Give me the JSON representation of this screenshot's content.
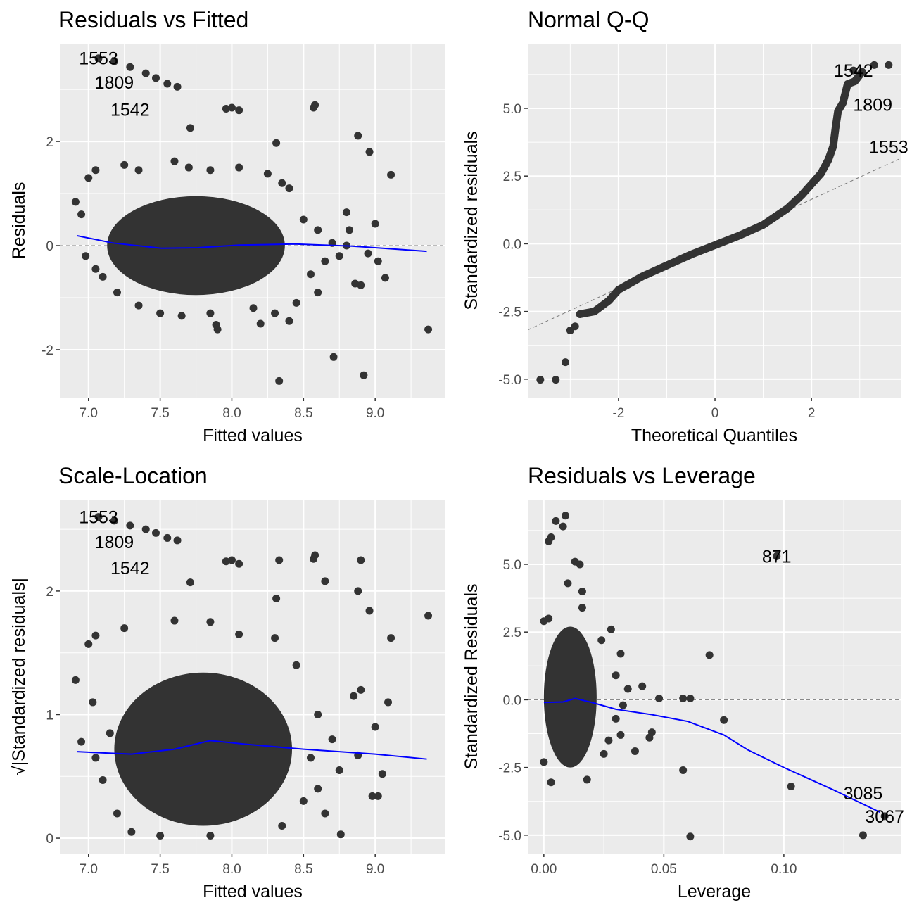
{
  "chart_data": [
    {
      "type": "scatter",
      "title": "Residuals vs Fitted",
      "xlabel": "Fitted values",
      "ylabel": "Residuals",
      "xlim": [
        6.8,
        9.49
      ],
      "ylim": [
        -2.92,
        3.88
      ],
      "xticks": [
        7.0,
        7.5,
        8.0,
        8.5,
        9.0
      ],
      "xtick_labels": [
        "7.0",
        "7.5",
        "8.0",
        "8.5",
        "9.0"
      ],
      "yticks": [
        -2,
        0,
        2
      ],
      "ytick_labels": [
        "-2",
        "0",
        "2"
      ],
      "grid": true,
      "hline": 0,
      "dense_region": {
        "center": [
          7.75,
          0.0
        ],
        "radius": [
          0.62,
          0.95
        ]
      },
      "points": [
        [
          7.07,
          3.6
        ],
        [
          7.18,
          3.54
        ],
        [
          7.29,
          3.43
        ],
        [
          7.4,
          3.31
        ],
        [
          7.47,
          3.22
        ],
        [
          7.55,
          3.11
        ],
        [
          7.62,
          3.05
        ],
        [
          7.96,
          2.63
        ],
        [
          8.0,
          2.65
        ],
        [
          8.05,
          2.6
        ],
        [
          8.58,
          2.7
        ],
        [
          8.57,
          2.65
        ],
        [
          7.71,
          2.26
        ],
        [
          8.31,
          1.97
        ],
        [
          8.88,
          2.11
        ],
        [
          8.96,
          1.8
        ],
        [
          9.11,
          1.36
        ],
        [
          9.37,
          -1.61
        ],
        [
          8.92,
          -2.49
        ],
        [
          8.71,
          -2.14
        ],
        [
          8.33,
          -2.6
        ],
        [
          7.9,
          -1.61
        ],
        [
          7.89,
          -1.52
        ],
        [
          9.07,
          -0.62
        ],
        [
          9.0,
          0.42
        ],
        [
          8.8,
          0.64
        ],
        [
          8.9,
          -0.76
        ],
        [
          8.86,
          -0.73
        ],
        [
          6.91,
          0.84
        ],
        [
          6.95,
          0.6
        ],
        [
          7.0,
          1.3
        ],
        [
          7.05,
          1.45
        ],
        [
          6.98,
          -0.2
        ],
        [
          7.05,
          -0.45
        ],
        [
          7.1,
          -0.6
        ],
        [
          7.25,
          1.55
        ],
        [
          7.35,
          1.45
        ],
        [
          7.6,
          1.62
        ],
        [
          7.7,
          1.5
        ],
        [
          7.85,
          1.45
        ],
        [
          8.05,
          1.5
        ],
        [
          8.25,
          1.38
        ],
        [
          8.35,
          1.2
        ],
        [
          8.4,
          1.1
        ],
        [
          8.5,
          0.5
        ],
        [
          8.6,
          0.3
        ],
        [
          8.65,
          -0.3
        ],
        [
          8.55,
          -0.55
        ],
        [
          8.6,
          -0.9
        ],
        [
          8.45,
          -1.1
        ],
        [
          8.3,
          -1.3
        ],
        [
          8.15,
          -1.2
        ],
        [
          7.5,
          -1.3
        ],
        [
          7.35,
          -1.15
        ],
        [
          7.2,
          -0.9
        ],
        [
          8.7,
          0.05
        ],
        [
          8.75,
          -0.2
        ],
        [
          8.8,
          0.0
        ],
        [
          8.95,
          -0.15
        ],
        [
          9.02,
          -0.3
        ],
        [
          8.82,
          0.3
        ],
        [
          8.4,
          -1.45
        ],
        [
          8.2,
          -1.5
        ],
        [
          7.65,
          -1.35
        ],
        [
          7.85,
          -1.3
        ]
      ],
      "smooth": {
        "color": "#0000ff",
        "x": [
          6.92,
          7.17,
          7.51,
          7.76,
          8.05,
          8.44,
          8.84,
          9.36
        ],
        "y": [
          0.19,
          0.05,
          -0.05,
          -0.04,
          0.01,
          0.03,
          -0.01,
          -0.11
        ]
      },
      "labels": [
        {
          "text": "1553",
          "x": 7.07,
          "y": 3.6
        },
        {
          "text": "1809",
          "x": 7.18,
          "y": 3.54
        },
        {
          "text": "1542",
          "x": 7.29,
          "y": 3.43
        }
      ]
    },
    {
      "type": "scatter",
      "title": "Normal Q-Q",
      "xlabel": "Theoretical Quantiles",
      "ylabel": "Standardized residuals",
      "xlim": [
        -3.88,
        3.85
      ],
      "ylim": [
        -5.68,
        7.39
      ],
      "xticks": [
        -2,
        0,
        2
      ],
      "xtick_labels": [
        "-2",
        "0",
        "2"
      ],
      "yticks": [
        -5,
        -2.5,
        0,
        2.5,
        5
      ],
      "ytick_labels": [
        "-5.0",
        "-2.5",
        "0.0",
        "2.5",
        "5.0"
      ],
      "grid": true,
      "refline": {
        "slope": 0.82,
        "intercept": 0.0
      },
      "curve": {
        "x": [
          -2.8,
          -2.5,
          -2.2,
          -2,
          -1.5,
          -1,
          -0.5,
          0,
          0.5,
          1,
          1.5,
          1.8,
          2.0,
          2.2,
          2.35,
          2.45,
          2.5,
          2.55,
          2.65,
          2.75,
          2.9,
          3.05
        ],
        "y": [
          -2.6,
          -2.5,
          -2.1,
          -1.7,
          -1.2,
          -0.8,
          -0.4,
          -0.05,
          0.3,
          0.7,
          1.3,
          1.8,
          2.2,
          2.6,
          3.1,
          3.6,
          4.3,
          4.9,
          5.2,
          5.9,
          6.0,
          6.35
        ]
      },
      "points": [
        [
          -3.62,
          -5.02
        ],
        [
          -3.3,
          -5.02
        ],
        [
          -3.1,
          -4.37
        ],
        [
          -3.0,
          -3.2
        ],
        [
          -2.9,
          -3.05
        ],
        [
          3.3,
          6.6
        ],
        [
          3.6,
          6.6
        ],
        [
          2.87,
          6.4
        ]
      ],
      "labels": [
        {
          "text": "1542",
          "x": 2.87,
          "y": 6.4
        },
        {
          "text": "1809",
          "x": 3.27,
          "y": 6.7
        },
        {
          "text": "1553",
          "x": 3.6,
          "y": 6.7
        }
      ]
    },
    {
      "type": "scatter",
      "title": "Scale-Location",
      "xlabel": "Fitted values",
      "ylabel": "√|Standardized residuals|",
      "xlim": [
        6.8,
        9.49
      ],
      "ylim": [
        -0.125,
        2.74
      ],
      "xticks": [
        7.0,
        7.5,
        8.0,
        8.5,
        9.0
      ],
      "xtick_labels": [
        "7.0",
        "7.5",
        "8.0",
        "8.5",
        "9.0"
      ],
      "yticks": [
        0,
        1,
        2
      ],
      "ytick_labels": [
        "0",
        "1",
        "2"
      ],
      "grid": true,
      "dense_region": {
        "center": [
          7.8,
          0.72
        ],
        "radius": [
          0.62,
          0.62
        ]
      },
      "points": [
        [
          7.07,
          2.6
        ],
        [
          7.18,
          2.57
        ],
        [
          7.29,
          2.53
        ],
        [
          7.4,
          2.5
        ],
        [
          7.47,
          2.47
        ],
        [
          7.55,
          2.43
        ],
        [
          7.62,
          2.41
        ],
        [
          7.96,
          2.24
        ],
        [
          8.0,
          2.25
        ],
        [
          8.05,
          2.22
        ],
        [
          8.58,
          2.29
        ],
        [
          8.57,
          2.26
        ],
        [
          7.71,
          2.07
        ],
        [
          8.31,
          1.94
        ],
        [
          8.33,
          2.25
        ],
        [
          8.65,
          2.08
        ],
        [
          8.88,
          2.0
        ],
        [
          8.9,
          2.25
        ],
        [
          8.96,
          1.84
        ],
        [
          9.11,
          1.62
        ],
        [
          9.37,
          1.8
        ],
        [
          9.09,
          1.1
        ],
        [
          9.0,
          0.9
        ],
        [
          9.05,
          0.52
        ],
        [
          8.98,
          0.34
        ],
        [
          9.02,
          0.34
        ],
        [
          8.88,
          0.67
        ],
        [
          8.9,
          1.2
        ],
        [
          8.85,
          1.15
        ],
        [
          6.91,
          1.28
        ],
        [
          6.95,
          0.78
        ],
        [
          7.0,
          1.57
        ],
        [
          7.05,
          1.64
        ],
        [
          7.03,
          1.1
        ],
        [
          7.05,
          0.65
        ],
        [
          7.1,
          0.47
        ],
        [
          7.25,
          1.7
        ],
        [
          7.6,
          1.76
        ],
        [
          7.85,
          1.75
        ],
        [
          8.05,
          1.65
        ],
        [
          8.3,
          1.62
        ],
        [
          8.45,
          1.4
        ],
        [
          8.6,
          1.0
        ],
        [
          8.7,
          0.8
        ],
        [
          8.75,
          0.55
        ],
        [
          8.76,
          0.03
        ],
        [
          8.65,
          0.2
        ],
        [
          8.5,
          0.3
        ],
        [
          8.35,
          0.1
        ],
        [
          7.3,
          0.05
        ],
        [
          7.5,
          0.02
        ],
        [
          7.85,
          0.02
        ],
        [
          7.2,
          0.2
        ],
        [
          7.15,
          0.85
        ],
        [
          8.55,
          0.65
        ],
        [
          8.6,
          0.4
        ]
      ],
      "smooth": {
        "color": "#0000ff",
        "x": [
          6.92,
          7.3,
          7.6,
          7.85,
          8.1,
          8.5,
          9.0,
          9.36
        ],
        "y": [
          0.7,
          0.68,
          0.72,
          0.79,
          0.76,
          0.72,
          0.68,
          0.64
        ]
      },
      "labels": [
        {
          "text": "1553",
          "x": 7.07,
          "y": 2.6
        },
        {
          "text": "1809",
          "x": 7.18,
          "y": 2.57
        },
        {
          "text": "1542",
          "x": 7.29,
          "y": 2.53
        }
      ]
    },
    {
      "type": "scatter",
      "title": "Residuals vs Leverage",
      "xlabel": "Leverage",
      "ylabel": "Standardized Residuals",
      "xlim": [
        -0.0067,
        0.1487
      ],
      "ylim": [
        -5.68,
        7.39
      ],
      "xticks": [
        0.0,
        0.05,
        0.1
      ],
      "xtick_labels": [
        "0.00",
        "0.05",
        "0.10"
      ],
      "yticks": [
        -5,
        -2.5,
        0,
        2.5,
        5
      ],
      "ytick_labels": [
        "-5.0",
        "-2.5",
        "0.0",
        "2.5",
        "5.0"
      ],
      "grid": true,
      "hline": 0,
      "dense_region": {
        "center": [
          0.011,
          0.1
        ],
        "radius": [
          0.011,
          2.6
        ]
      },
      "points": [
        [
          0.097,
          5.3
        ],
        [
          0.069,
          1.65
        ],
        [
          0.075,
          -0.75
        ],
        [
          0.103,
          -3.2
        ],
        [
          0.058,
          -2.6
        ],
        [
          0.061,
          -5.05
        ],
        [
          0.133,
          -5.0
        ],
        [
          0.142,
          -4.3
        ],
        [
          0.048,
          0.05
        ],
        [
          0.058,
          0.05
        ],
        [
          0.061,
          0.05
        ],
        [
          0.041,
          0.5
        ],
        [
          0.038,
          -1.9
        ],
        [
          0.044,
          -1.4
        ],
        [
          0.045,
          -1.2
        ],
        [
          0.005,
          6.6
        ],
        [
          0.009,
          6.8
        ],
        [
          0.008,
          6.4
        ],
        [
          0.003,
          6.0
        ],
        [
          0.002,
          5.85
        ],
        [
          0.013,
          5.1
        ],
        [
          0.015,
          5.0
        ],
        [
          0.016,
          4.0
        ],
        [
          0.01,
          4.3
        ],
        [
          0.016,
          3.4
        ],
        [
          0.028,
          2.6
        ],
        [
          0.032,
          1.7
        ],
        [
          0.035,
          0.4
        ],
        [
          0.033,
          -0.2
        ],
        [
          0.03,
          -0.7
        ],
        [
          0.032,
          -1.3
        ],
        [
          0.025,
          -2.0
        ],
        [
          0.018,
          -2.95
        ],
        [
          0.003,
          -3.05
        ],
        [
          0.0,
          -2.3
        ],
        [
          0.0,
          2.9
        ],
        [
          0.002,
          3.0
        ],
        [
          0.024,
          2.2
        ],
        [
          0.03,
          0.9
        ],
        [
          0.027,
          -1.5
        ]
      ],
      "smooth": {
        "color": "#0000ff",
        "x": [
          0,
          0.008,
          0.013,
          0.02,
          0.03,
          0.045,
          0.06,
          0.075,
          0.085,
          0.1,
          0.12,
          0.14
        ],
        "y": [
          -0.1,
          -0.08,
          0.05,
          -0.1,
          -0.35,
          -0.55,
          -0.8,
          -1.3,
          -1.85,
          -2.5,
          -3.3,
          -4.15
        ]
      },
      "labels": [
        {
          "text": "871",
          "x": 0.097,
          "y": 5.3
        },
        {
          "text": "3067",
          "x": 0.142,
          "y": -4.3
        },
        {
          "text": "3085",
          "x": 0.133,
          "y": -5.0
        }
      ]
    }
  ]
}
